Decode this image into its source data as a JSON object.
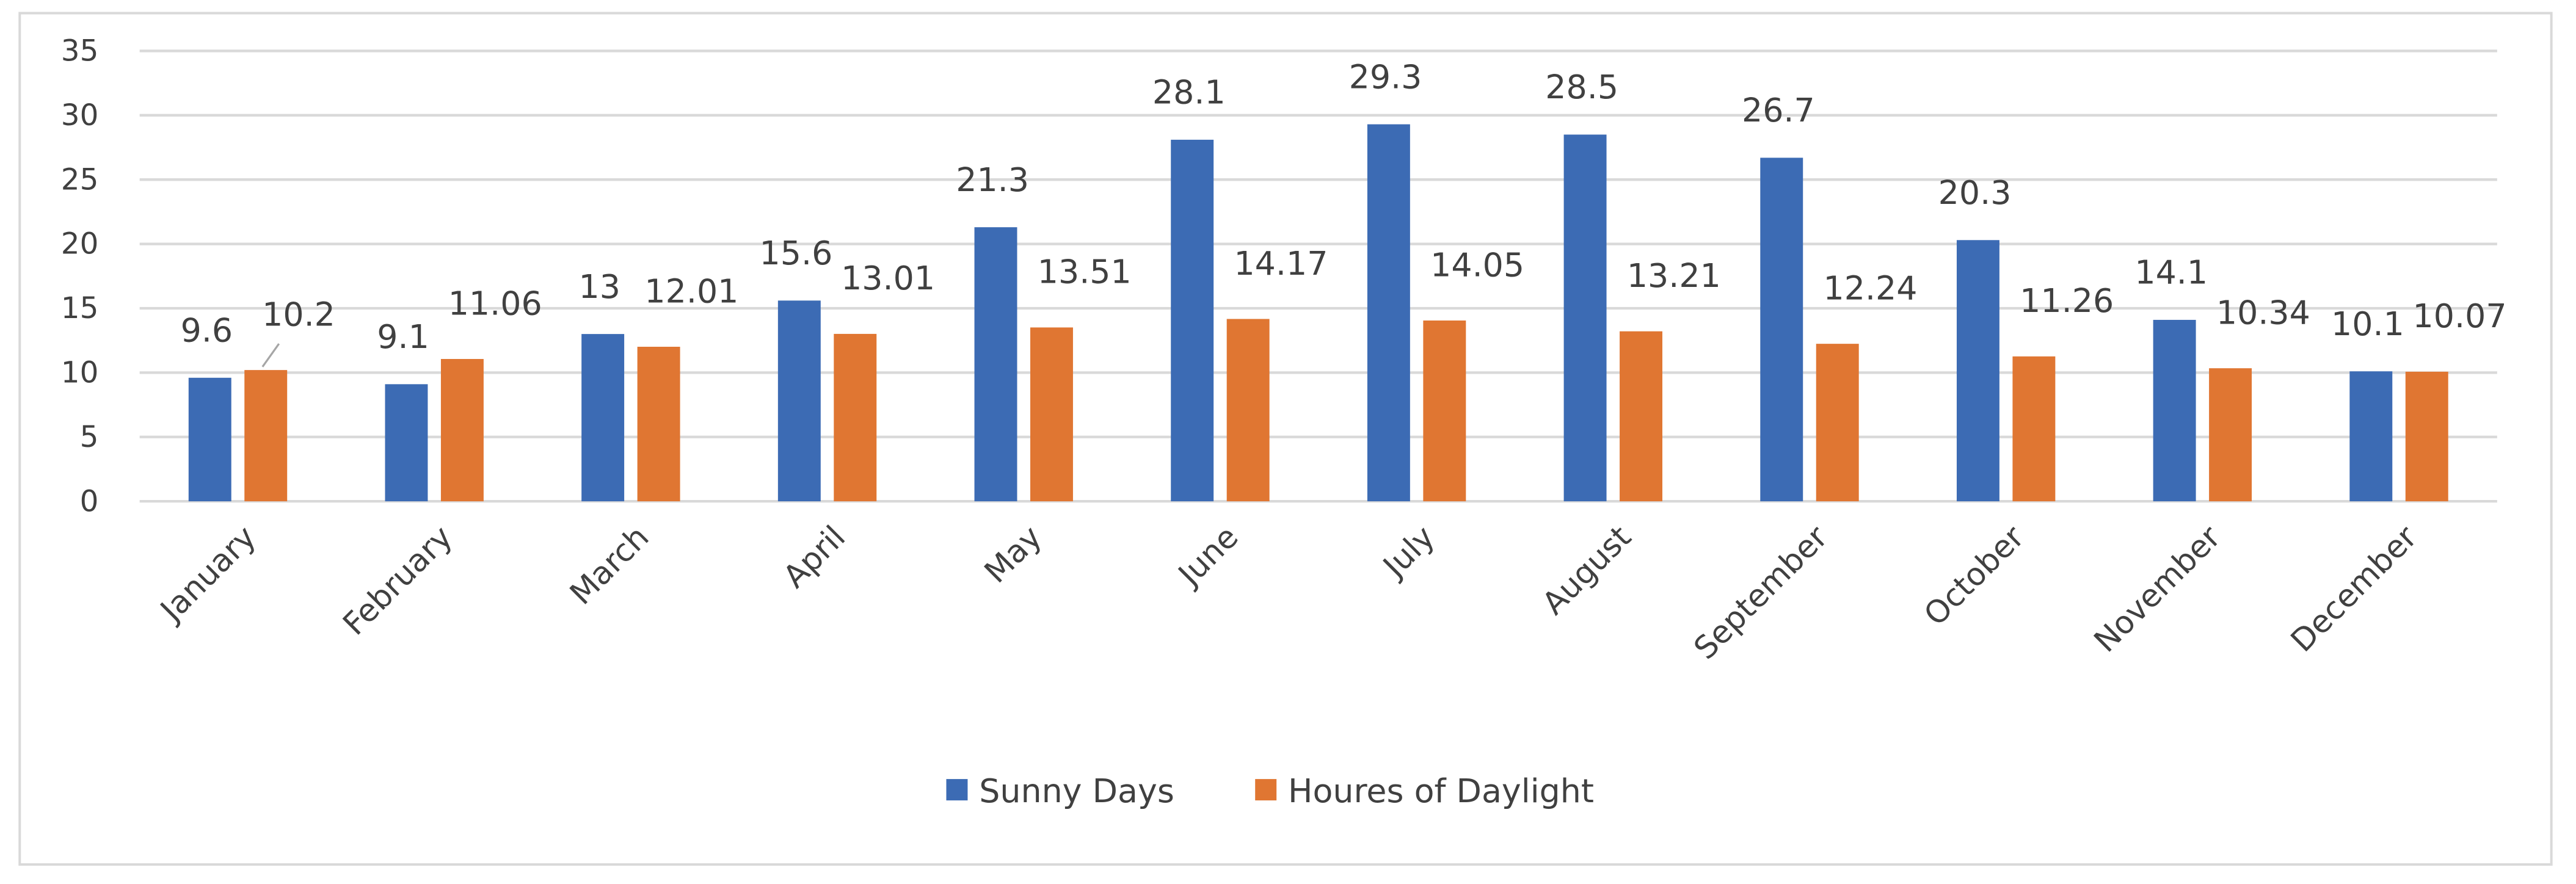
{
  "chart_data": {
    "type": "bar",
    "title": "",
    "xlabel": "",
    "ylabel": "",
    "ylim": [
      0,
      35
    ],
    "yticks": [
      0,
      5,
      10,
      15,
      20,
      25,
      30,
      35
    ],
    "grid": true,
    "legend_position": "bottom",
    "categories": [
      "January",
      "February",
      "March",
      "April",
      "May",
      "June",
      "July",
      "August",
      "September",
      "October",
      "November",
      "December"
    ],
    "series": [
      {
        "name": "Sunny Days",
        "color": "#3C6BB4",
        "values": [
          9.6,
          9.1,
          13,
          15.6,
          21.3,
          28.1,
          29.3,
          28.5,
          26.7,
          20.3,
          14.1,
          10.1
        ],
        "labels": [
          "9.6",
          "9.1",
          "13",
          "15.6",
          "21.3",
          "28.1",
          "29.3",
          "28.5",
          "26.7",
          "20.3",
          "14.1",
          "10.1"
        ]
      },
      {
        "name": "Houres of Daylight",
        "color": "#E07632",
        "values": [
          10.2,
          11.06,
          12.01,
          13.01,
          13.51,
          14.17,
          14.05,
          13.21,
          12.24,
          11.26,
          10.34,
          10.07
        ],
        "labels": [
          "10.2",
          "11.06",
          "12.01",
          "13.01",
          "13.51",
          "14.17",
          "14.05",
          "13.21",
          "12.24",
          "11.26",
          "10.34",
          "10.07"
        ]
      }
    ],
    "legend": [
      "Sunny Days",
      "Houres of Daylight"
    ]
  }
}
